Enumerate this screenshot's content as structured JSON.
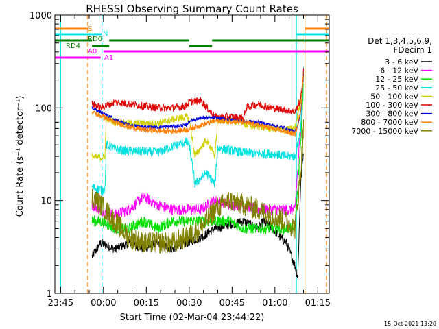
{
  "chart_data": {
    "type": "line",
    "title": "RHESSI Observing Summary Count Rates",
    "xlabel": "Start Time (02-Mar-04 23:44:22)",
    "ylabel": "Count Rate (s⁻¹ detector⁻¹)",
    "y_scale": "log",
    "ylim": [
      1,
      1000
    ],
    "xlim_minutes_after_start": [
      -1,
      95
    ],
    "x_ticks": [
      {
        "label": "23:45",
        "t": 1
      },
      {
        "label": "00:00",
        "t": 16
      },
      {
        "label": "00:15",
        "t": 31
      },
      {
        "label": "00:30",
        "t": 46
      },
      {
        "label": "00:45",
        "t": 61
      },
      {
        "label": "01:00",
        "t": 76
      },
      {
        "label": "01:15",
        "t": 91
      }
    ],
    "y_ticks": [
      {
        "label": "1",
        "v": 1
      },
      {
        "label": "10",
        "v": 10
      },
      {
        "label": "100",
        "v": 100
      },
      {
        "label": "1000",
        "v": 1000
      }
    ],
    "legend": {
      "header": [
        "Det 1,3,4,5,6,9,",
        "FDecim 1"
      ],
      "position": "right"
    },
    "series": [
      {
        "name": "3 - 6 keV",
        "color": "#000000",
        "t": [
          12,
          15,
          20,
          25,
          30,
          35,
          40,
          45,
          50,
          55,
          60,
          65,
          70,
          72,
          75,
          78,
          80,
          83,
          84,
          85,
          86
        ],
        "values": [
          2.5,
          3.5,
          3,
          3.5,
          3,
          3.5,
          3,
          3.5,
          4,
          5,
          5.5,
          6,
          5,
          6,
          5,
          4,
          3.5,
          2,
          1.5,
          15,
          35
        ]
      },
      {
        "name": "6 - 12 keV",
        "color": "#ff00ff",
        "t": [
          12,
          15,
          20,
          25,
          30,
          35,
          40,
          45,
          50,
          55,
          60,
          65,
          70,
          75,
          78,
          80,
          83,
          85,
          86
        ],
        "values": [
          9,
          8,
          7,
          8,
          11,
          9,
          8,
          8,
          8,
          10,
          9,
          9,
          8,
          8,
          8,
          8,
          8,
          60,
          250
        ]
      },
      {
        "name": "12 - 25 keV",
        "color": "#00e000",
        "t": [
          12,
          15,
          20,
          25,
          30,
          35,
          40,
          45,
          50,
          55,
          60,
          65,
          70,
          75,
          78,
          80,
          83,
          85,
          86
        ],
        "values": [
          6,
          6,
          5,
          5,
          6,
          5,
          6,
          6,
          6,
          6,
          6,
          5,
          5,
          5,
          5,
          5,
          5,
          40,
          180
        ]
      },
      {
        "name": "25 - 50 keV",
        "color": "#00e0e0",
        "t": [
          12,
          15,
          16.5,
          17,
          20,
          25,
          30,
          35,
          40,
          45,
          46,
          48,
          52,
          55,
          56,
          60,
          65,
          66,
          70,
          75,
          80,
          83,
          84,
          85,
          86
        ],
        "values": [
          14,
          13,
          13,
          40,
          36,
          34,
          34,
          33,
          38,
          43,
          40,
          15,
          20,
          15,
          37,
          35,
          33,
          33,
          32,
          32,
          30,
          30,
          40,
          60,
          250
        ]
      },
      {
        "name": "50 - 100 keV",
        "color": "#d0d000",
        "t": [
          12,
          15,
          16.5,
          17,
          20,
          25,
          30,
          35,
          40,
          45,
          46,
          48,
          52,
          55,
          56,
          60,
          65,
          66,
          70,
          75,
          80,
          83,
          84,
          85,
          86
        ],
        "values": [
          30,
          29,
          30,
          78,
          70,
          68,
          68,
          68,
          75,
          80,
          75,
          30,
          45,
          30,
          75,
          72,
          70,
          65,
          63,
          60,
          58,
          60,
          85,
          120,
          250
        ]
      },
      {
        "name": "100 - 300 keV",
        "color": "#e00000",
        "t": [
          12,
          15,
          20,
          25,
          30,
          35,
          40,
          45,
          46,
          50,
          55,
          60,
          65,
          66,
          70,
          75,
          80,
          83,
          84,
          85,
          86
        ],
        "values": [
          110,
          100,
          115,
          110,
          105,
          100,
          100,
          105,
          115,
          120,
          80,
          80,
          78,
          100,
          110,
          100,
          95,
          90,
          105,
          120,
          250
        ]
      },
      {
        "name": "300 - 800 keV",
        "color": "#0000e0",
        "t": [
          12,
          15,
          20,
          25,
          30,
          35,
          40,
          45,
          46,
          50,
          55,
          60,
          65,
          70,
          75,
          80,
          83,
          84,
          85,
          86
        ],
        "values": [
          100,
          90,
          75,
          65,
          62,
          62,
          63,
          65,
          72,
          78,
          78,
          75,
          72,
          70,
          65,
          60,
          55,
          65,
          90,
          220
        ]
      },
      {
        "name": "800 - 7000 keV",
        "color": "#ff8000",
        "t": [
          12,
          15,
          20,
          25,
          30,
          35,
          40,
          45,
          50,
          55,
          60,
          65,
          70,
          75,
          80,
          83,
          84,
          85,
          86
        ],
        "values": [
          90,
          82,
          70,
          62,
          58,
          57,
          56,
          58,
          65,
          72,
          72,
          70,
          65,
          60,
          55,
          52,
          65,
          95,
          220
        ]
      },
      {
        "name": "7000 - 15000 keV",
        "color": "#808000",
        "t": [
          12,
          15,
          20,
          25,
          30,
          35,
          40,
          45,
          50,
          55,
          60,
          65,
          70,
          75,
          80,
          83,
          85,
          86
        ],
        "values": [
          11,
          9,
          6,
          4,
          3.5,
          3.5,
          3.5,
          4,
          5,
          8,
          10,
          9,
          8,
          7,
          6,
          5,
          20,
          60
        ]
      }
    ],
    "annotations": {
      "vertical_lines": [
        {
          "t": 1,
          "color": "#00e0e0",
          "style": "solid"
        },
        {
          "t": 10.5,
          "color": "#ff8000",
          "style": "dashed"
        },
        {
          "t": 15.5,
          "color": "#00e0e0",
          "style": "dashed"
        },
        {
          "t": 83.5,
          "color": "#00e0e0",
          "style": "solid"
        },
        {
          "t": 86.5,
          "color": "#ff8000",
          "style": "solid"
        },
        {
          "t": 94,
          "color": "#ff8000",
          "style": "dashed"
        }
      ],
      "state_bars": [
        {
          "label": "S",
          "color": "#ff8000",
          "row": 1,
          "segments": [
            [
              -1,
              10.5
            ],
            [
              86.5,
              95
            ]
          ]
        },
        {
          "label": "N",
          "color": "#00e0e0",
          "row": 2,
          "segments": [
            [
              -1,
              15.5
            ],
            [
              83.5,
              95
            ]
          ]
        },
        {
          "label": "RD0",
          "color": "#008000",
          "row": 3,
          "segments": [
            [
              -1,
              12
            ],
            [
              18,
              46
            ],
            [
              54,
              95
            ]
          ]
        },
        {
          "label": "RD4",
          "color": "#008000",
          "row": 4,
          "segments": [
            [
              12,
              18
            ],
            [
              46,
              54
            ]
          ]
        },
        {
          "label": "A0",
          "color": "#ff00ff",
          "row": 5,
          "segments": [
            [
              16,
              95
            ]
          ]
        },
        {
          "label": "A1",
          "color": "#ff00ff",
          "row": 6,
          "segments": [
            [
              -1,
              15
            ]
          ]
        }
      ]
    }
  },
  "footer": {
    "timestamp": "15-Oct-2021 13:20"
  }
}
